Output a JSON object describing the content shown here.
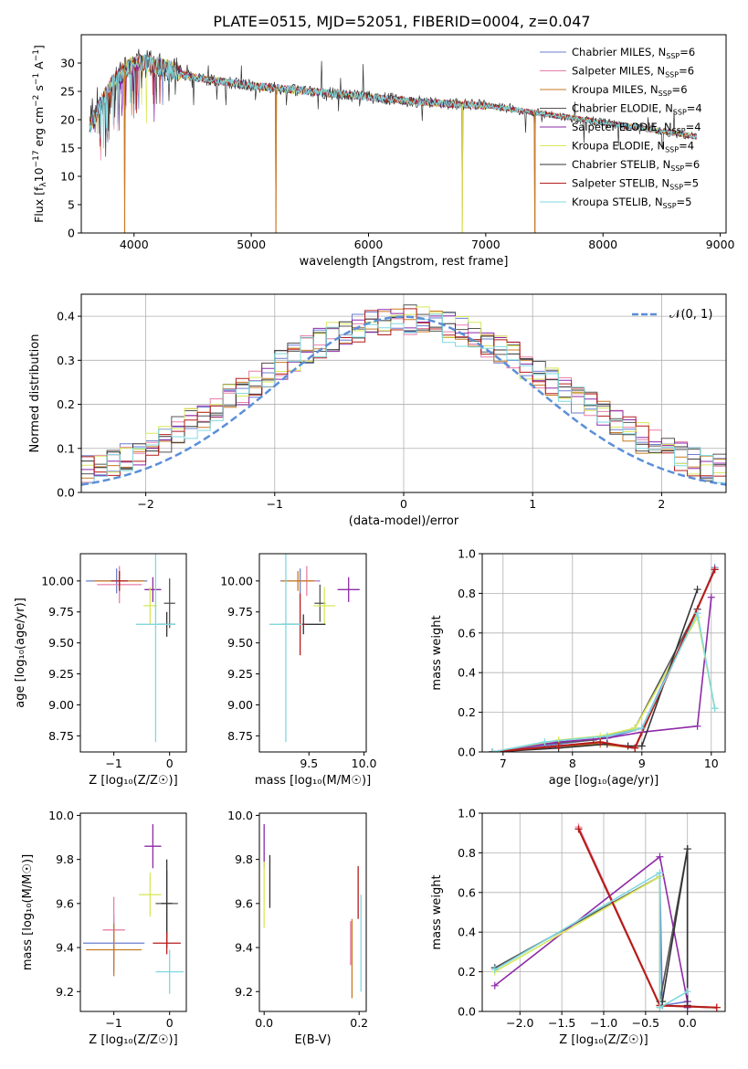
{
  "figure": {
    "title": "PLATE=0515, MJD=52051, FIBERID=0004, z=0.047"
  },
  "chart_data": [
    {
      "id": "spectrum",
      "type": "line",
      "title": "PLATE=0515, MJD=52051, FIBERID=0004, z=0.047",
      "xlabel": "wavelength [Angstrom, rest frame]",
      "ylabel_main": "Flux [f",
      "ylabel_sub": "λ",
      "ylabel_tail": "10",
      "ylabel_exp1": "−17",
      "ylabel_mid": " erg cm",
      "ylabel_exp2": "−2",
      "ylabel_mid2": " s",
      "ylabel_exp3": "−1",
      "ylabel_end": " A",
      "ylabel_exp4": "−1",
      "ylabel_close": "]",
      "xlim": [
        3550,
        9050
      ],
      "ylim": [
        0,
        35
      ],
      "xticks": [
        4000,
        5000,
        6000,
        7000,
        8000,
        9000
      ],
      "yticks": [
        0,
        5,
        10,
        15,
        20,
        25,
        30
      ],
      "legend_position": "upper-right",
      "continuum_knots": [
        [
          3620,
          19
        ],
        [
          3700,
          22
        ],
        [
          3800,
          26
        ],
        [
          3900,
          28.5
        ],
        [
          4000,
          30
        ],
        [
          4100,
          30
        ],
        [
          4300,
          29
        ],
        [
          4500,
          27.5
        ],
        [
          5000,
          26
        ],
        [
          5500,
          25
        ],
        [
          6000,
          24
        ],
        [
          6500,
          23
        ],
        [
          7000,
          22.5
        ],
        [
          7500,
          21
        ],
        [
          8000,
          19.5
        ],
        [
          8500,
          18
        ],
        [
          8800,
          17
        ]
      ],
      "dropouts": [
        3920,
        5210,
        6800,
        7420
      ],
      "series": [
        {
          "name": "Chabrier MILES",
          "nssp": "6",
          "color": "#6a7fd0"
        },
        {
          "name": "Salpeter MILES",
          "nssp": "6",
          "color": "#e87fa8"
        },
        {
          "name": "Kroupa MILES",
          "nssp": "6",
          "color": "#c87a22"
        },
        {
          "name": "Chabrier ELODIE",
          "nssp": "4",
          "color": "#555555"
        },
        {
          "name": "Salpeter ELODIE",
          "nssp": "4",
          "color": "#8e2aa8"
        },
        {
          "name": "Kroupa ELODIE",
          "nssp": "4",
          "color": "#d8e85a"
        },
        {
          "name": "Chabrier STELIB",
          "nssp": "6",
          "color": "#333333"
        },
        {
          "name": "Salpeter STELIB",
          "nssp": "5",
          "color": "#b51c1c"
        },
        {
          "name": "Kroupa STELIB",
          "nssp": "5",
          "color": "#7fd8e0"
        }
      ],
      "legend_prefix": "N",
      "legend_sub": "SSP"
    },
    {
      "id": "residuals",
      "type": "line",
      "xlabel": "(data-model)/error",
      "ylabel": "Normed distribution",
      "xlim": [
        -2.5,
        2.5
      ],
      "ylim": [
        0,
        0.45
      ],
      "xticks": [
        -2,
        -1,
        0,
        1,
        2
      ],
      "yticks": [
        0.0,
        0.1,
        0.2,
        0.3,
        0.4
      ],
      "grid": true,
      "legend_position": "upper-right",
      "normal_label": "𝒩(0, 1)",
      "normal_color": "#5b8fd8",
      "bin_width": 0.1
    },
    {
      "id": "age_vs_Z",
      "type": "scatter",
      "xlabel": "Z [log₁₀(Z/Z☉)]",
      "ylabel": "age  [log₁₀(age/yr)]",
      "xlim": [
        -1.6,
        0.3
      ],
      "ylim": [
        8.62,
        10.22
      ],
      "xticks": [
        -1,
        0
      ],
      "yticks": [
        8.75,
        9.0,
        9.25,
        9.5,
        9.75,
        10.0
      ],
      "points": [
        {
          "color": "#6a7fd0",
          "x": -0.95,
          "y": 10.0,
          "xerr": 0.55,
          "yerr": 0.1
        },
        {
          "color": "#e87fa8",
          "x": -0.9,
          "y": 9.97,
          "xerr": 0.4,
          "yerr": 0.15
        },
        {
          "color": "#c87a22",
          "x": -0.9,
          "y": 10.0,
          "xerr": 0.45,
          "yerr": 0.08
        },
        {
          "color": "#555555",
          "x": 0.0,
          "y": 9.82,
          "xerr": 0.1,
          "yerr": 0.2
        },
        {
          "color": "#8e2aa8",
          "x": -0.3,
          "y": 9.93,
          "xerr": 0.15,
          "yerr": 0.1
        },
        {
          "color": "#d8e85a",
          "x": -0.35,
          "y": 9.8,
          "xerr": 0.12,
          "yerr": 0.15
        },
        {
          "color": "#333333",
          "x": -0.05,
          "y": 9.65,
          "xerr": 0.15,
          "yerr": 0.1
        },
        {
          "color": "#b51c1c",
          "x": -0.9,
          "y": 10.0,
          "xerr": 0.15,
          "yerr": 0.08
        },
        {
          "color": "#7fd8e0",
          "x": -0.25,
          "y": 9.65,
          "xerr": 0.35,
          "yerr": 0.95
        }
      ]
    },
    {
      "id": "age_vs_mass",
      "type": "scatter",
      "xlabel": "mass [log₁₀(M/M☉)]",
      "xlim": [
        9.05,
        10.02
      ],
      "ylim": [
        8.62,
        10.22
      ],
      "xticks": [
        9.5,
        10.0
      ],
      "yticks": [
        8.75,
        9.0,
        9.25,
        9.5,
        9.75,
        10.0
      ],
      "points": [
        {
          "color": "#6a7fd0",
          "x": 9.42,
          "y": 10.0,
          "xerr": 0.18,
          "yerr": 0.1
        },
        {
          "color": "#e87fa8",
          "x": 9.48,
          "y": 10.0,
          "xerr": 0.1,
          "yerr": 0.12
        },
        {
          "color": "#c87a22",
          "x": 9.4,
          "y": 10.0,
          "xerr": 0.15,
          "yerr": 0.08
        },
        {
          "color": "#555555",
          "x": 9.6,
          "y": 9.82,
          "xerr": 0.05,
          "yerr": 0.15
        },
        {
          "color": "#8e2aa8",
          "x": 9.86,
          "y": 9.93,
          "xerr": 0.1,
          "yerr": 0.1
        },
        {
          "color": "#d8e85a",
          "x": 9.64,
          "y": 9.8,
          "xerr": 0.1,
          "yerr": 0.15
        },
        {
          "color": "#333333",
          "x": 9.45,
          "y": 9.65,
          "xerr": 0.2,
          "yerr": 0.08
        },
        {
          "color": "#b51c1c",
          "x": 9.42,
          "y": 9.65,
          "xerr": 0.05,
          "yerr": 0.25
        },
        {
          "color": "#7fd8e0",
          "x": 9.29,
          "y": 9.65,
          "xerr": 0.15,
          "yerr": 0.95
        }
      ]
    },
    {
      "id": "massweight_vs_age",
      "type": "line",
      "xlabel": "age  [log₁₀(age/yr)]",
      "ylabel": "mass weight",
      "xlim": [
        6.7,
        10.2
      ],
      "ylim": [
        0,
        1.0
      ],
      "xticks": [
        7,
        8,
        9,
        10
      ],
      "yticks": [
        0.0,
        0.2,
        0.4,
        0.6,
        0.8,
        1.0
      ],
      "grid": true,
      "series": [
        {
          "color": "#6a7fd0",
          "x": [
            6.85,
            7.8,
            8.5,
            9.0,
            9.8,
            10.05
          ],
          "y": [
            0.0,
            0.04,
            0.07,
            0.12,
            0.72,
            0.93
          ]
        },
        {
          "color": "#e87fa8",
          "x": [
            6.85,
            7.8,
            8.4,
            8.9,
            10.05
          ],
          "y": [
            0.0,
            0.03,
            0.05,
            0.02,
            0.92
          ]
        },
        {
          "color": "#c87a22",
          "x": [
            6.85,
            7.8,
            8.4,
            8.9,
            10.05
          ],
          "y": [
            0.0,
            0.03,
            0.04,
            0.02,
            0.92
          ]
        },
        {
          "color": "#555555",
          "x": [
            6.85,
            7.6,
            8.3,
            8.9,
            9.8
          ],
          "y": [
            0.0,
            0.04,
            0.06,
            0.12,
            0.72
          ]
        },
        {
          "color": "#8e2aa8",
          "x": [
            6.85,
            7.8,
            8.5,
            9.0,
            9.8,
            10.0
          ],
          "y": [
            0.0,
            0.05,
            0.07,
            0.1,
            0.13,
            0.78
          ]
        },
        {
          "color": "#d8e85a",
          "x": [
            6.85,
            7.8,
            8.4,
            8.9,
            9.8,
            10.05
          ],
          "y": [
            0.0,
            0.06,
            0.08,
            0.12,
            0.68,
            0.22
          ]
        },
        {
          "color": "#333333",
          "x": [
            6.85,
            7.8,
            8.5,
            8.8,
            9.0,
            9.8
          ],
          "y": [
            0.0,
            0.02,
            0.04,
            0.03,
            0.03,
            0.82
          ]
        },
        {
          "color": "#b51c1c",
          "x": [
            6.85,
            7.8,
            8.4,
            8.9,
            10.05
          ],
          "y": [
            0.0,
            0.03,
            0.05,
            0.02,
            0.92
          ]
        },
        {
          "color": "#7fd8e0",
          "x": [
            6.85,
            7.6,
            8.5,
            9.0,
            9.8,
            10.05
          ],
          "y": [
            0.0,
            0.05,
            0.08,
            0.12,
            0.7,
            0.22
          ]
        }
      ]
    },
    {
      "id": "mass_vs_Z",
      "type": "scatter",
      "xlabel": "Z [log₁₀(Z/Z☉)]",
      "ylabel": "mass [log₁₀(M/M☉)]",
      "xlim": [
        -1.6,
        0.3
      ],
      "ylim": [
        9.11,
        10.01
      ],
      "xticks": [
        -1,
        0
      ],
      "yticks": [
        9.2,
        9.4,
        9.6,
        9.8,
        10.0
      ],
      "points": [
        {
          "color": "#6a7fd0",
          "x": -1.0,
          "y": 9.42,
          "xerr": 0.55,
          "yerr": 0.13
        },
        {
          "color": "#e87fa8",
          "x": -1.0,
          "y": 9.48,
          "xerr": 0.2,
          "yerr": 0.15
        },
        {
          "color": "#c87a22",
          "x": -1.0,
          "y": 9.39,
          "xerr": 0.5,
          "yerr": 0.12
        },
        {
          "color": "#555555",
          "x": -0.05,
          "y": 9.6,
          "xerr": 0.2,
          "yerr": 0.15
        },
        {
          "color": "#8e2aa8",
          "x": -0.3,
          "y": 9.86,
          "xerr": 0.15,
          "yerr": 0.1
        },
        {
          "color": "#d8e85a",
          "x": -0.35,
          "y": 9.64,
          "xerr": 0.2,
          "yerr": 0.1
        },
        {
          "color": "#333333",
          "x": -0.05,
          "y": 9.6,
          "xerr": 0.1,
          "yerr": 0.2
        },
        {
          "color": "#b51c1c",
          "x": -0.05,
          "y": 9.42,
          "xerr": 0.25,
          "yerr": 0.05
        },
        {
          "color": "#7fd8e0",
          "x": 0.0,
          "y": 9.29,
          "xerr": 0.25,
          "yerr": 0.1
        }
      ]
    },
    {
      "id": "mass_vs_ebv",
      "type": "scatter",
      "xlabel": "E(B-V)",
      "xlim": [
        -0.01,
        0.215
      ],
      "ylim": [
        9.11,
        10.01
      ],
      "xticks": [
        0.0,
        0.2
      ],
      "yticks": [
        9.2,
        9.4,
        9.6,
        9.8,
        10.0
      ],
      "points": [
        {
          "color": "#8e2aa8",
          "x": 0.0,
          "y": 9.86,
          "yerr": 0.1
        },
        {
          "color": "#d8e85a",
          "x": 0.0,
          "y": 9.64,
          "yerr": 0.15
        },
        {
          "color": "#333333",
          "x": 0.012,
          "y": 9.7,
          "yerr": 0.12
        },
        {
          "color": "#b51c1c",
          "x": 0.198,
          "y": 9.65,
          "yerr": 0.12
        },
        {
          "color": "#c87a22",
          "x": 0.185,
          "y": 9.35,
          "yerr": 0.18
        },
        {
          "color": "#e87fa8",
          "x": 0.182,
          "y": 9.42,
          "yerr": 0.1
        },
        {
          "color": "#7fd8e0",
          "x": 0.204,
          "y": 9.42,
          "yerr": 0.22
        }
      ]
    },
    {
      "id": "massweight_vs_Z",
      "type": "line",
      "xlabel": "Z [log₁₀(Z/Z☉)]",
      "ylabel": "mass weight",
      "xlim": [
        -2.45,
        0.45
      ],
      "ylim": [
        0,
        1.0
      ],
      "xticks": [
        -2.0,
        -1.5,
        -1.0,
        -0.5,
        0.0
      ],
      "yticks": [
        0.0,
        0.2,
        0.4,
        0.6,
        0.8,
        1.0
      ],
      "grid": true,
      "series": [
        {
          "color": "#6a7fd0",
          "x": [
            -2.3,
            -0.33,
            -0.3,
            0.0,
            0.0
          ],
          "y": [
            0.22,
            0.68,
            0.03,
            0.05,
            0.02
          ]
        },
        {
          "color": "#e87fa8",
          "x": [
            -1.3,
            -0.33,
            0.35
          ],
          "y": [
            0.93,
            0.03,
            0.02
          ]
        },
        {
          "color": "#c87a22",
          "x": [
            -1.3,
            -0.33,
            0.35
          ],
          "y": [
            0.92,
            0.03,
            0.02
          ]
        },
        {
          "color": "#555555",
          "x": [
            -2.3,
            -0.33,
            -0.33,
            0.0,
            0.0
          ],
          "y": [
            0.22,
            0.68,
            0.05,
            0.82,
            0.03
          ]
        },
        {
          "color": "#8e2aa8",
          "x": [
            -2.3,
            -0.33,
            0.0,
            0.0
          ],
          "y": [
            0.13,
            0.78,
            0.05,
            0.02
          ]
        },
        {
          "color": "#d8e85a",
          "x": [
            -2.3,
            -0.33,
            -0.33
          ],
          "y": [
            0.2,
            0.68,
            0.02
          ]
        },
        {
          "color": "#333333",
          "x": [
            -0.3,
            0.0,
            0.0
          ],
          "y": [
            0.05,
            0.82,
            0.03
          ]
        },
        {
          "color": "#b51c1c",
          "x": [
            -1.3,
            -0.33,
            0.35
          ],
          "y": [
            0.92,
            0.03,
            0.02
          ]
        },
        {
          "color": "#7fd8e0",
          "x": [
            -2.3,
            -0.33,
            -0.33,
            0.0
          ],
          "y": [
            0.21,
            0.7,
            0.02,
            0.1
          ]
        }
      ]
    }
  ]
}
